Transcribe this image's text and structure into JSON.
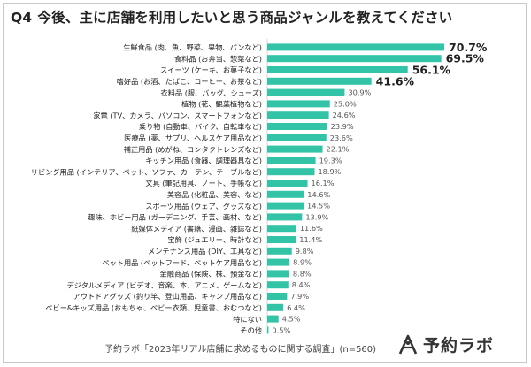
{
  "title": {
    "number": "Q4",
    "text": "今後、主に店舗を利用したいと思う商品ジャンルを教えてください"
  },
  "source": "予約ラボ「2023年リアル店舗に求めるものに関する調査」(n=560)",
  "brand": {
    "name": "予約ラボ"
  },
  "colors": {
    "bar": "#33c4a8",
    "text": "#222222",
    "muted": "#555555"
  },
  "chart_data": {
    "type": "bar",
    "orientation": "horizontal",
    "categories": [
      "生鮮食品 (肉、魚、野菜、果物、パンなど)",
      "食料品 (お弁当、惣菜など)",
      "スイーツ (ケーキ、お菓子など)",
      "嗜好品 (お酒、たばこ、コーヒー、お茶など)",
      "衣料品 (服、バッグ、シューズ)",
      "植物 (花、観葉植物など)",
      "家電 (TV、カメラ、パソコン、スマートフォンなど)",
      "乗り物 (自動車、バイク、自転車など)",
      "医療品 (薬、サプリ、ヘルスケア用品など)",
      "補正用品 (めがね、コンタクトレンズなど)",
      "キッチン用品 (食器、調理器具など)",
      "リビング用品 (インテリア、ペット、ソファ、カーテン、テーブルなど)",
      "文具 (筆記用具、ノート、手帳など)",
      "美容品 (化粧品、美容、など)",
      "スポーツ用品 (ウェア、グッズなど)",
      "趣味、ホビー用品 (ガーデニング、手芸、画材、など)",
      "紙媒体メディア (書籍、漫画、雑誌など)",
      "宝飾 (ジュエリー、時計など)",
      "メンテナンス用品 (DIY、工具など)",
      "ペット用品 (ペットフード、ペットケア用品など)",
      "金融商品 (保険、株、預金など)",
      "デジタルメディア (ビデオ、音楽、本、アニメ、ゲームなど)",
      "アウトドアグッズ (釣り竿、登山用品、キャンプ用品など)",
      "ベビー&キッズ用品 (おもちゃ、ベビー衣類、児童書、おむつなど)",
      "特にない",
      "その他"
    ],
    "values": [
      70.7,
      69.5,
      56.1,
      41.6,
      30.9,
      25.0,
      24.6,
      23.9,
      23.6,
      22.1,
      19.3,
      18.9,
      16.1,
      14.6,
      14.5,
      13.9,
      11.6,
      11.4,
      9.8,
      8.9,
      8.8,
      8.4,
      7.9,
      6.4,
      4.5,
      0.5
    ],
    "value_labels": [
      "70.7%",
      "69.5%",
      "56.1%",
      "41.6%",
      "30.9%",
      "25.0%",
      "24.6%",
      "23.9%",
      "23.6%",
      "22.1%",
      "19.3%",
      "18.9%",
      "16.1%",
      "14.6%",
      "14.5%",
      "13.9%",
      "11.6%",
      "11.4%",
      "9.8%",
      "8.9%",
      "8.8%",
      "8.4%",
      "7.9%",
      "6.4%",
      "4.5%",
      "0.5%"
    ],
    "highlighted_top": 4,
    "xlim": [
      0,
      100
    ],
    "unit": "%",
    "grid": false,
    "legend": "none"
  }
}
